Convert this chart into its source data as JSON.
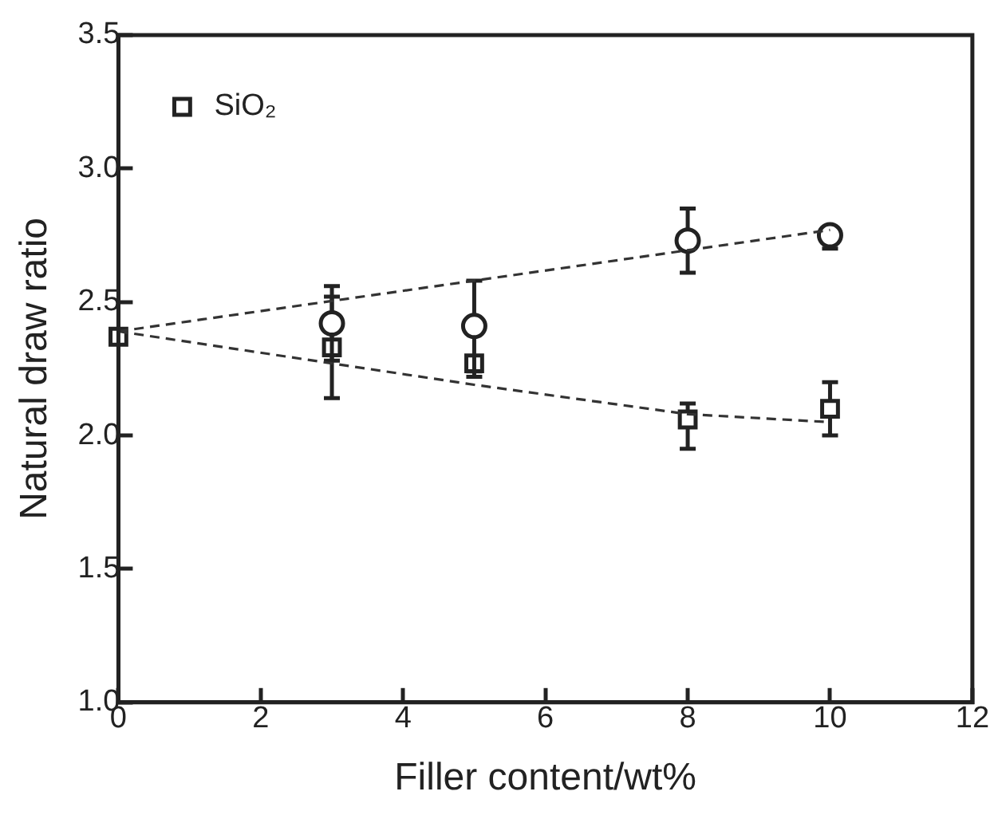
{
  "chart_data": {
    "type": "scatter",
    "xlabel": "Filler content/wt%",
    "ylabel": "Natural draw ratio",
    "xlim": [
      0,
      12
    ],
    "xticks": [
      0,
      2,
      4,
      6,
      8,
      10,
      12
    ],
    "ylim": [
      1.0,
      3.5
    ],
    "yticks": [
      {
        "value": 1.0,
        "label": "1.0"
      },
      {
        "value": 1.5,
        "label": "1.5"
      },
      {
        "value": 2.0,
        "label": "2.0"
      },
      {
        "value": 2.5,
        "label": "2.5"
      },
      {
        "value": 3.0,
        "label": "3.0"
      },
      {
        "value": 3.5,
        "label": "3.5"
      }
    ],
    "grid": false,
    "legend": "top left",
    "series": [
      {
        "type": "line",
        "color": "#333333",
        "x": [
          0,
          10
        ],
        "values": [
          2.39,
          2.77
        ],
        "marker": "none",
        "line_style": "dashed"
      },
      {
        "type": "line",
        "color": "#333333",
        "x": [
          0,
          3,
          5,
          8,
          10
        ],
        "values": [
          2.39,
          2.27,
          2.19,
          2.08,
          2.05
        ],
        "marker": "none",
        "line_style": "dashed"
      },
      {
        "color": "#222222",
        "marker": "circle",
        "x": [
          3,
          5,
          8,
          10
        ],
        "values": [
          2.42,
          2.41,
          2.73,
          2.75
        ],
        "errors": [
          0.14,
          0.17,
          0.12,
          [
            2.7,
            2.77
          ]
        ]
      },
      {
        "name": "SiO₂",
        "color": "#222222",
        "marker": "square",
        "x": [
          0,
          3,
          5,
          8,
          10
        ],
        "values": [
          2.37,
          2.33,
          2.27,
          2.06,
          2.1
        ],
        "errors": [
          null,
          0.19,
          [
            2.22,
            2.29
          ],
          [
            1.95,
            2.12
          ],
          0.1
        ]
      }
    ]
  }
}
